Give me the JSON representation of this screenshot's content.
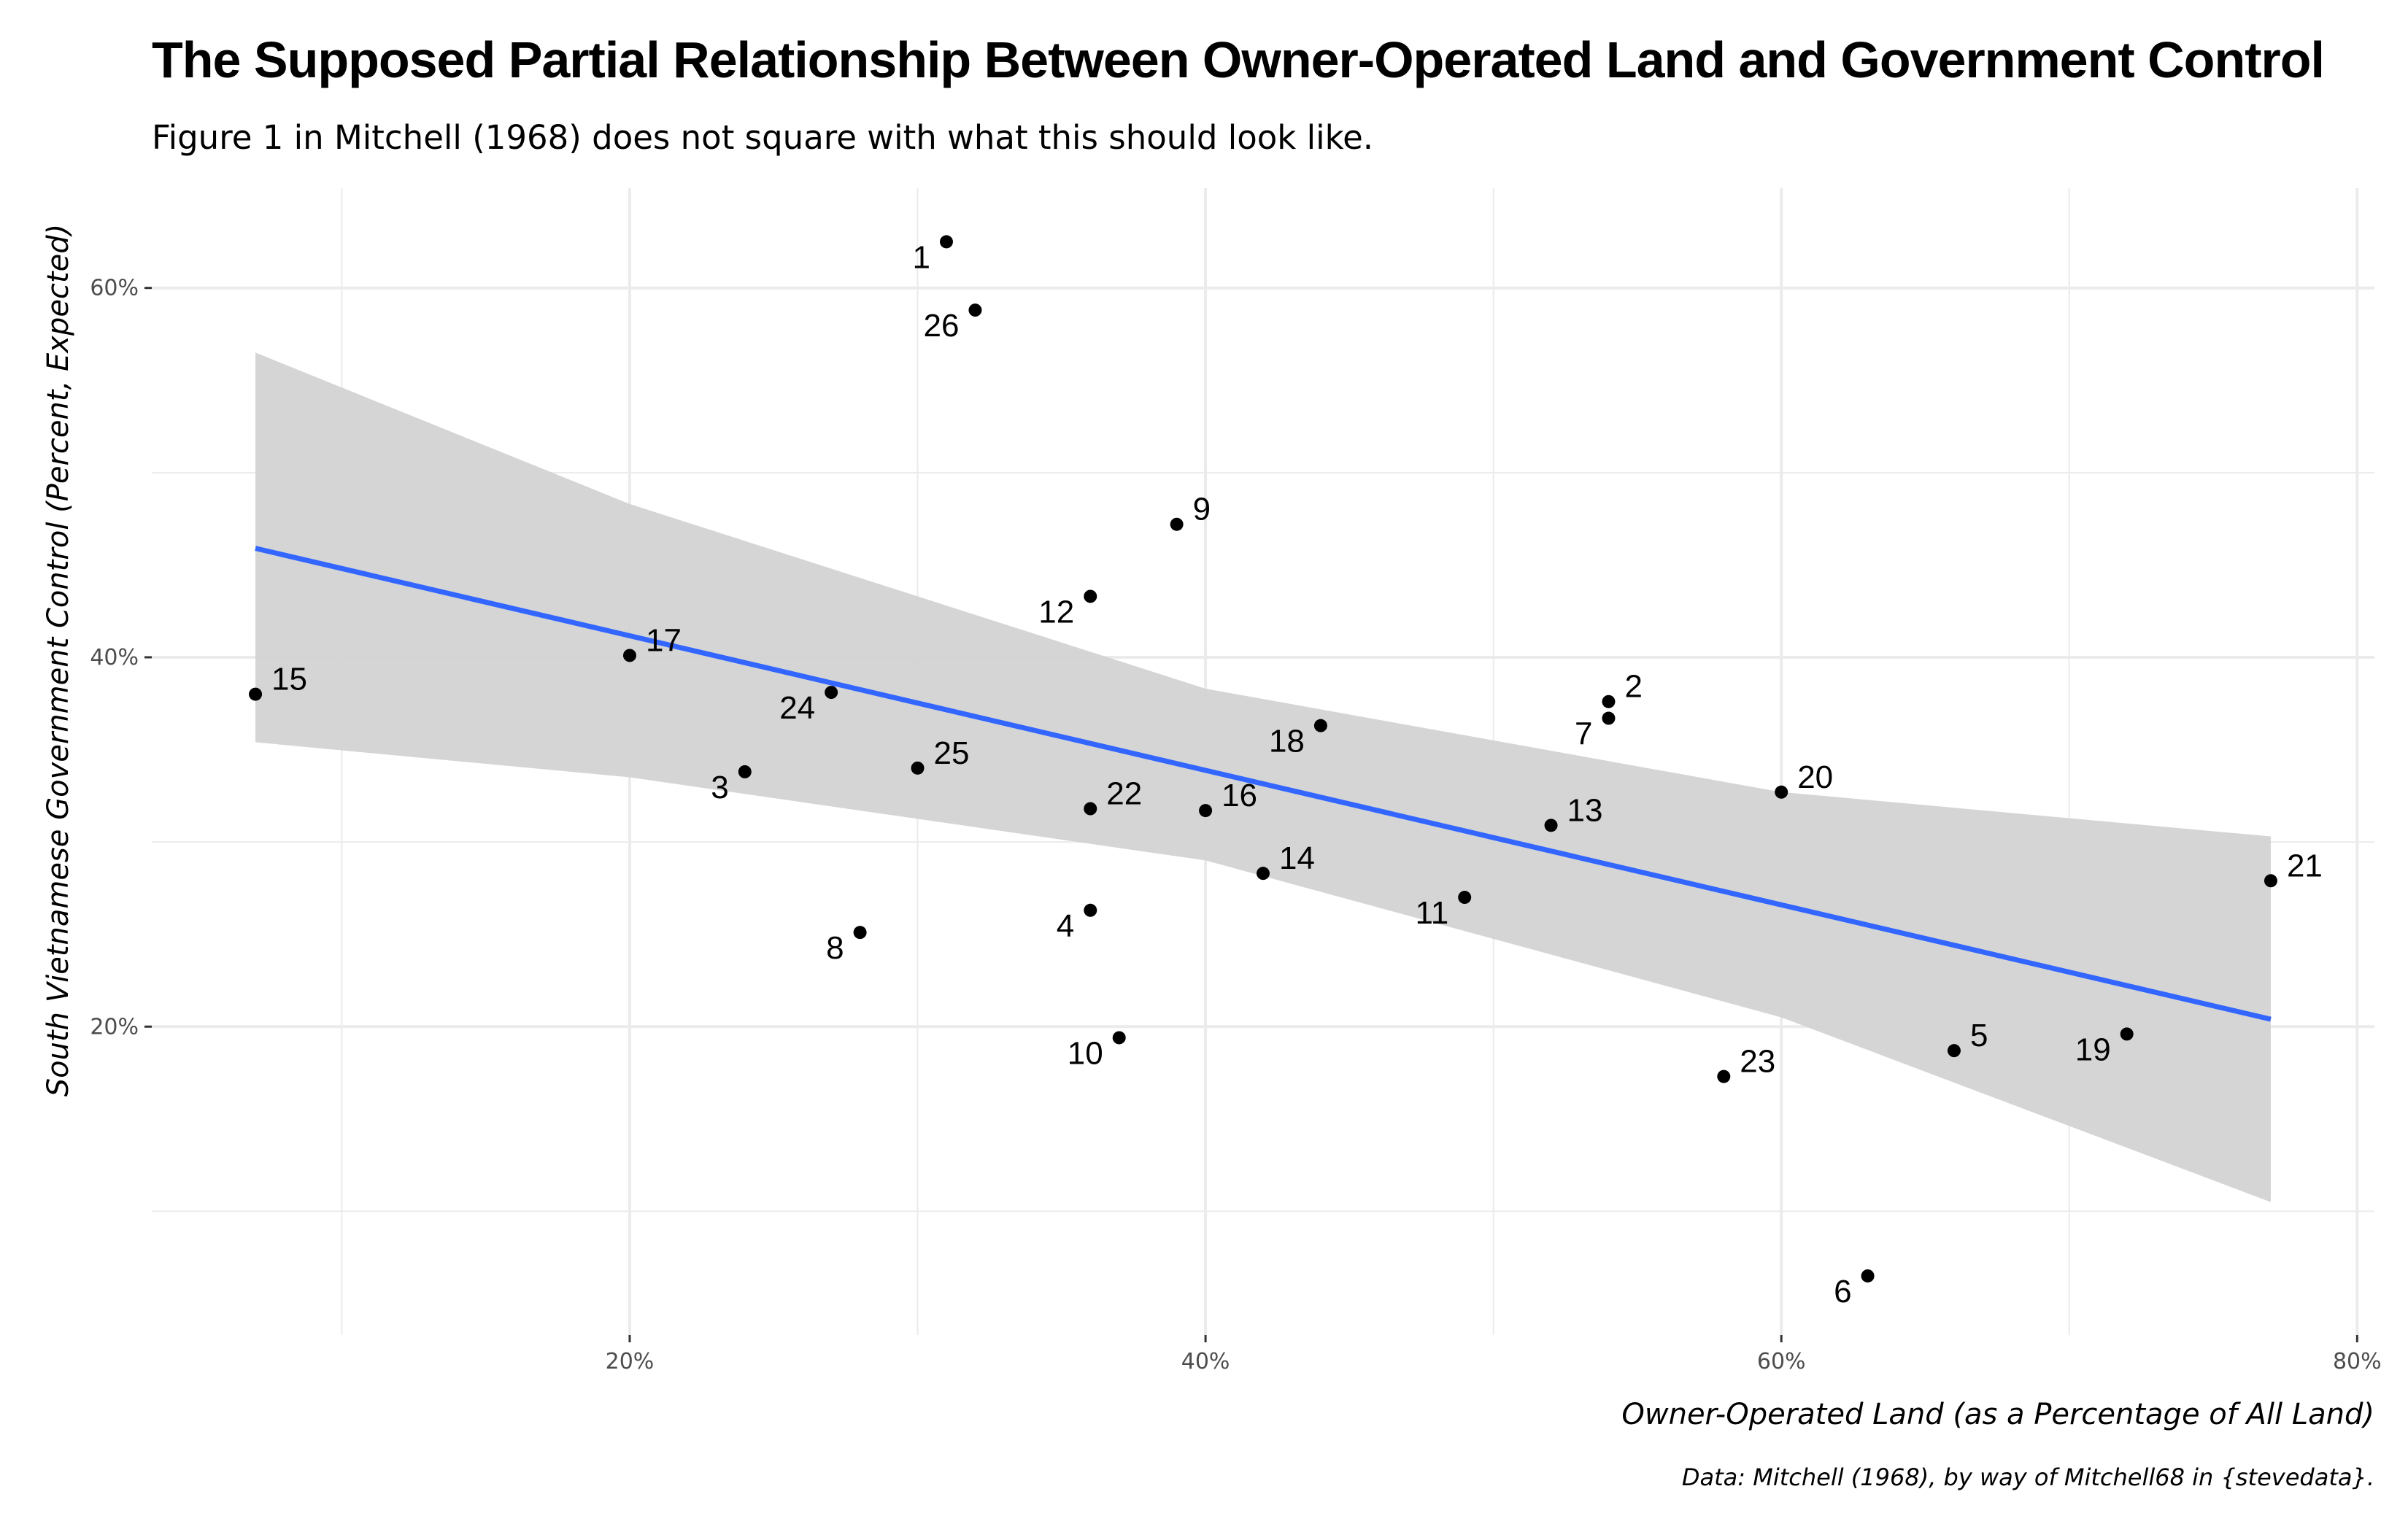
{
  "chart_data": {
    "type": "scatter",
    "title": "The Supposed Partial Relationship Between Owner-Operated Land and Government Control",
    "subtitle": "Figure 1 in Mitchell (1968) does not square with what this should look like.",
    "xlabel": "Owner-Operated Land (as a Percentage of All Land)",
    "ylabel": "South Vietnamese Government Control (Percent, Expected)",
    "caption": "Data: Mitchell (1968), by way of Mitchell68 in {stevedata}.",
    "xlim": [
      3.4,
      80.6
    ],
    "ylim": [
      3.3,
      65.4
    ],
    "x_ticks": [
      {
        "value": 20,
        "label": "20%"
      },
      {
        "value": 40,
        "label": "40%"
      },
      {
        "value": 60,
        "label": "60%"
      },
      {
        "value": 80,
        "label": "80%"
      }
    ],
    "y_ticks": [
      {
        "value": 20,
        "label": "20%"
      },
      {
        "value": 40,
        "label": "40%"
      },
      {
        "value": 60,
        "label": "60%"
      }
    ],
    "grid": true,
    "points": [
      {
        "label": "1",
        "x": 31,
        "y": 62.5,
        "pos": "bl"
      },
      {
        "label": "2",
        "x": 54,
        "y": 37.6,
        "pos": "tr"
      },
      {
        "label": "3",
        "x": 24,
        "y": 33.8,
        "pos": "bl"
      },
      {
        "label": "4",
        "x": 36,
        "y": 26.3,
        "pos": "bl"
      },
      {
        "label": "5",
        "x": 66,
        "y": 18.7,
        "pos": "tr"
      },
      {
        "label": "6",
        "x": 63,
        "y": 6.5,
        "pos": "bl"
      },
      {
        "label": "7",
        "x": 54,
        "y": 36.7,
        "pos": "bl"
      },
      {
        "label": "8",
        "x": 28,
        "y": 25.1,
        "pos": "bl"
      },
      {
        "label": "9",
        "x": 39,
        "y": 47.2,
        "pos": "tr"
      },
      {
        "label": "10",
        "x": 37,
        "y": 19.4,
        "pos": "bl"
      },
      {
        "label": "11",
        "x": 49,
        "y": 27.0,
        "pos": "bl"
      },
      {
        "label": "12",
        "x": 36,
        "y": 43.3,
        "pos": "bl"
      },
      {
        "label": "13",
        "x": 52,
        "y": 30.9,
        "pos": "tr"
      },
      {
        "label": "14",
        "x": 42,
        "y": 28.3,
        "pos": "tr"
      },
      {
        "label": "15",
        "x": 7,
        "y": 38.0,
        "pos": "tr"
      },
      {
        "label": "16",
        "x": 40,
        "y": 31.7,
        "pos": "tr"
      },
      {
        "label": "17",
        "x": 20,
        "y": 40.1,
        "pos": "tr"
      },
      {
        "label": "18",
        "x": 44,
        "y": 36.3,
        "pos": "bl"
      },
      {
        "label": "19",
        "x": 72,
        "y": 19.6,
        "pos": "bl"
      },
      {
        "label": "20",
        "x": 60,
        "y": 32.7,
        "pos": "tr"
      },
      {
        "label": "21",
        "x": 77,
        "y": 27.9,
        "pos": "tr"
      },
      {
        "label": "22",
        "x": 36,
        "y": 31.8,
        "pos": "tr"
      },
      {
        "label": "23",
        "x": 58,
        "y": 17.3,
        "pos": "tr"
      },
      {
        "label": "24",
        "x": 27,
        "y": 38.1,
        "pos": "bl"
      },
      {
        "label": "25",
        "x": 30,
        "y": 34.0,
        "pos": "tr"
      },
      {
        "label": "26",
        "x": 32,
        "y": 58.8,
        "pos": "bl"
      }
    ],
    "fit": {
      "x": [
        7,
        77
      ],
      "y": [
        45.9,
        20.4
      ],
      "band_lower": [
        35.4,
        10.5
      ],
      "band_upper": [
        56.5,
        30.3
      ],
      "band_x": [
        7,
        20,
        40,
        60,
        77
      ],
      "band_lower_pts": [
        35.4,
        33.5,
        29.0,
        20.5,
        10.5
      ],
      "band_upper_pts": [
        56.5,
        48.3,
        38.3,
        32.7,
        30.3
      ],
      "line_color": "#3366FF",
      "band_color": "#d3d3d3"
    },
    "colors": {
      "points": "#000000",
      "grid": "#ebebeb",
      "tick_text": "#4d4d4d"
    }
  }
}
